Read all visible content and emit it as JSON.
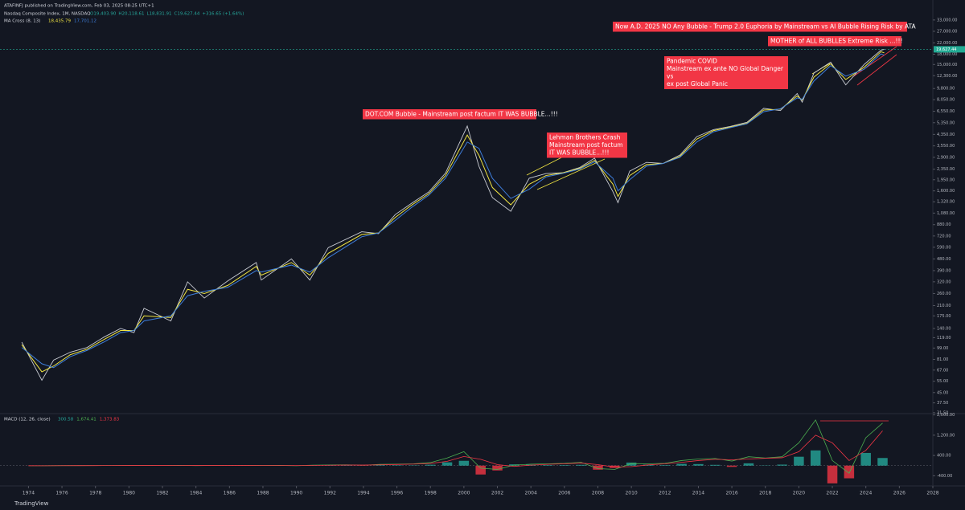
{
  "chart_data": [
    {
      "type": "line",
      "publisher": "ATAFINFJ published on TradingView.com, Feb 03, 2025 08:25 UTC+1",
      "title": "Nasdaq Composite Index, 1M, NASDAQ",
      "ohlc_labels": [
        "O19,403.90",
        "H20,118.61",
        "L18,831.91",
        "C19,627.44",
        "+316.65 (+1.64%)"
      ],
      "indicator": "MA Cross (8, 13)",
      "indicator_values": [
        "18,435.79",
        "17,701.12"
      ],
      "log_scale": true,
      "grid": false,
      "x": [
        1973.6,
        1974.8,
        1975.5,
        1976.5,
        1977.5,
        1978.5,
        1979.5,
        1980.3,
        1980.9,
        1982.5,
        1983.5,
        1984.5,
        1985.9,
        1987.6,
        1987.9,
        1989.7,
        1990.8,
        1991.9,
        1993.9,
        1994.9,
        1995.9,
        1996.9,
        1997.9,
        1998.9,
        2000.2,
        2000.9,
        2001.7,
        2002.8,
        2003.9,
        2004.9,
        2005.9,
        2006.9,
        2007.8,
        2008.9,
        2009.2,
        2009.9,
        2010.9,
        2011.9,
        2012.9,
        2013.9,
        2014.9,
        2015.9,
        2016.9,
        2017.9,
        2018.9,
        2019.9,
        2020.2,
        2020.9,
        2021.9,
        2022.8,
        2023.9,
        2024.9,
        2025.1
      ],
      "xlim": [
        1972.3,
        2028
      ],
      "xticks": [
        1974,
        1976,
        1978,
        1980,
        1982,
        1984,
        1986,
        1988,
        1990,
        1992,
        1994,
        1996,
        1998,
        2000,
        2002,
        2004,
        2006,
        2008,
        2010,
        2012,
        2014,
        2016,
        2018,
        2020,
        2022,
        2024,
        2026,
        2028
      ],
      "ylim": [
        31,
        47000
      ],
      "yticks": [
        {
          "value": 33000,
          "label": "33,000.00"
        },
        {
          "value": 27000,
          "label": "27,000.00"
        },
        {
          "value": 22000,
          "label": "22,000.00"
        },
        {
          "value": 18000,
          "label": "18,000.00"
        },
        {
          "value": 15000,
          "label": "15,000.00"
        },
        {
          "value": 12300,
          "label": "12,300.00"
        },
        {
          "value": 9800,
          "label": "9,800.00"
        },
        {
          "value": 8050,
          "label": "8,050.00"
        },
        {
          "value": 6550,
          "label": "6,550.00"
        },
        {
          "value": 5350,
          "label": "5,350.00"
        },
        {
          "value": 4350,
          "label": "4,350.00"
        },
        {
          "value": 3550,
          "label": "3,550.00"
        },
        {
          "value": 2900,
          "label": "2,900.00"
        },
        {
          "value": 2350,
          "label": "2,350.00"
        },
        {
          "value": 1950,
          "label": "1,950.00"
        },
        {
          "value": 1600,
          "label": "1,600.00"
        },
        {
          "value": 1320,
          "label": "1,320.00"
        },
        {
          "value": 1080,
          "label": "1,080.00"
        },
        {
          "value": 880,
          "label": "880.00"
        },
        {
          "value": 720,
          "label": "720.00"
        },
        {
          "value": 590,
          "label": "590.00"
        },
        {
          "value": 480,
          "label": "480.00"
        },
        {
          "value": 390,
          "label": "390.00"
        },
        {
          "value": 320,
          "label": "320.00"
        },
        {
          "value": 260,
          "label": "260.00"
        },
        {
          "value": 210,
          "label": "210.00"
        },
        {
          "value": 175,
          "label": "175.00"
        },
        {
          "value": 140,
          "label": "140.00"
        },
        {
          "value": 119,
          "label": "119.00"
        },
        {
          "value": 99,
          "label": "99.00"
        },
        {
          "value": 81,
          "label": "81.00"
        },
        {
          "value": 67,
          "label": "67.00"
        },
        {
          "value": 55,
          "label": "55.00"
        },
        {
          "value": 45,
          "label": "45.00"
        },
        {
          "value": 37.5,
          "label": "37.50"
        },
        {
          "value": 31.5,
          "label": "31.50"
        }
      ],
      "series": [
        {
          "name": "Nasdaq Composite Index, 1M, NASDAQ",
          "color": "#c9ccd3",
          "values": [
            110,
            56,
            80,
            92,
            100,
            120,
            140,
            130,
            200,
            160,
            320,
            240,
            325,
            450,
            330,
            480,
            330,
            586,
            776,
            751,
            1052,
            1291,
            1570,
            2193,
            5048,
            2470,
            1423,
            1114,
            2003,
            2175,
            2205,
            2415,
            2859,
            1577,
            1300,
            2269,
            2652,
            2605,
            3019,
            4176,
            4736,
            5007,
            5383,
            6903,
            6635,
            8972,
            7700,
            12888,
            15644,
            10466,
            15011,
            19310,
            19627.44
          ]
        },
        {
          "name": "MA Cross (8, 13)",
          "color": "#f0e442",
          "values": [
            105,
            65,
            72,
            88,
            97,
            115,
            135,
            135,
            175,
            170,
            280,
            260,
            300,
            420,
            360,
            450,
            360,
            530,
            740,
            760,
            1000,
            1250,
            1520,
            2100,
            4300,
            3000,
            1700,
            1250,
            1800,
            2100,
            2200,
            2380,
            2750,
            1800,
            1450,
            2100,
            2550,
            2600,
            2950,
            4000,
            4650,
            4950,
            5300,
            6700,
            6800,
            8600,
            8000,
            12000,
            15200,
            11500,
            14300,
            18800,
            18435.79
          ]
        },
        {
          "color": "#3d7ddb",
          "values": [
            100,
            75,
            70,
            85,
            95,
            110,
            130,
            135,
            160,
            175,
            250,
            270,
            290,
            390,
            380,
            430,
            380,
            490,
            710,
            760,
            950,
            1200,
            1480,
            2000,
            3800,
            3400,
            2000,
            1400,
            1650,
            2050,
            2180,
            2350,
            2680,
            2000,
            1600,
            1950,
            2480,
            2600,
            2900,
            3800,
            4550,
            4900,
            5250,
            6500,
            6850,
            8300,
            8100,
            11200,
            14700,
            12200,
            13800,
            18100,
            17701.12
          ]
        }
      ],
      "last_price": {
        "value": 19627.44,
        "label": "19,627.44",
        "color": "#22ab94"
      },
      "annotations": [
        [
          "Now A.D. 2025 NO Any Bubble - Trump 2.0 Euphoria by Mainstream vs AI Bubble Rising Risk by ATA"
        ],
        [
          "MOTHER  of  ALL  BUBLLES Extreme Risk ...!!!"
        ],
        [
          "Pandemic COVID",
          "Mainstream ex ante NO Global Danger",
          "vs",
          "ex post Global Panic"
        ],
        [
          "DOT.COM Bubble - Mainstream post factum IT WAS BUBBLE...!!!"
        ],
        [
          "Lehman Brothers Crash",
          "Mainstream post factum",
          "IT WAS BUBBLE...!!!"
        ]
      ],
      "annotation_color": "#f23645",
      "footer": "TradingView"
    },
    {
      "type": "macd",
      "title": "MACD (12, 26, close)",
      "legend_values": [
        "300.58",
        "1,674.41",
        "1,373.83"
      ],
      "legend_colors": [
        "#26a69a",
        "#4caf50",
        "#f23645"
      ],
      "x": [
        1974,
        1975,
        1976,
        1977,
        1978,
        1979,
        1980,
        1981,
        1982,
        1983,
        1984,
        1985,
        1986,
        1987,
        1988,
        1989,
        1990,
        1991,
        1992,
        1993,
        1994,
        1995,
        1996,
        1997,
        1998,
        1999,
        2000,
        2001,
        2002,
        2003,
        2004,
        2005,
        2006,
        2007,
        2008,
        2009,
        2010,
        2011,
        2012,
        2013,
        2014,
        2015,
        2016,
        2017,
        2018,
        2019,
        2020,
        2021,
        2022,
        2023,
        2024,
        2025
      ],
      "ylim": [
        -800,
        2050
      ],
      "yticks": [
        {
          "value": 2000,
          "label": "2,000.00"
        },
        {
          "value": 1200,
          "label": "1,200.00"
        },
        {
          "value": 400,
          "label": "400.00"
        },
        {
          "value": -400,
          "label": "-400.00"
        }
      ],
      "histogram": {
        "up_color": "#26a69a",
        "down_color": "#f23645",
        "values": [
          -2,
          2,
          3,
          1,
          1,
          1,
          3,
          -1,
          -1,
          4,
          -4,
          2,
          3,
          0,
          -4,
          3,
          -8,
          12,
          10,
          8,
          -7,
          18,
          15,
          12,
          35,
          130,
          190,
          -350,
          -190,
          50,
          40,
          20,
          20,
          30,
          -160,
          -90,
          120,
          40,
          20,
          70,
          60,
          30,
          -50,
          90,
          10,
          40,
          350,
          600,
          -700,
          -500,
          500,
          300.58
        ]
      },
      "series": [
        {
          "color": "#4caf50",
          "values": [
            -5,
            -2,
            2,
            2,
            3,
            4,
            8,
            5,
            4,
            12,
            2,
            8,
            12,
            10,
            3,
            10,
            -5,
            20,
            25,
            30,
            15,
            50,
            60,
            70,
            120,
            300,
            550,
            -100,
            -150,
            20,
            60,
            70,
            90,
            130,
            -120,
            -150,
            80,
            70,
            90,
            200,
            260,
            280,
            180,
            350,
            300,
            350,
            900,
            1800,
            200,
            -300,
            1100,
            1674.41
          ]
        },
        {
          "color": "#f23645",
          "values": [
            -3,
            -4,
            -1,
            1,
            2,
            3,
            5,
            6,
            5,
            8,
            6,
            6,
            9,
            10,
            7,
            7,
            3,
            8,
            15,
            22,
            22,
            32,
            45,
            58,
            85,
            170,
            360,
            250,
            40,
            -30,
            20,
            50,
            70,
            100,
            40,
            -60,
            -40,
            30,
            70,
            130,
            200,
            250,
            230,
            260,
            290,
            310,
            550,
            1200,
            900,
            200,
            600,
            1373.83
          ]
        }
      ]
    }
  ]
}
